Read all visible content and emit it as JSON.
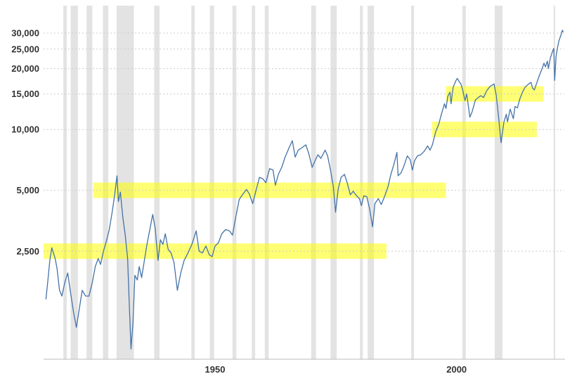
{
  "chart_data": {
    "type": "line",
    "title": "",
    "x_axis": {
      "range": [
        1914.5,
        2022.3
      ],
      "ticks": [
        {
          "value": 1950,
          "label": "1950"
        },
        {
          "value": 2000,
          "label": "2000"
        }
      ]
    },
    "y_axis": {
      "scale": "log",
      "range": [
        730,
        41000
      ],
      "ticks": [
        {
          "value": 2500,
          "label": "2,500"
        },
        {
          "value": 5000,
          "label": "5,000"
        },
        {
          "value": 10000,
          "label": "10,000"
        },
        {
          "value": 15000,
          "label": "15,000"
        },
        {
          "value": 20000,
          "label": "20,000"
        },
        {
          "value": 25000,
          "label": "25,000"
        },
        {
          "value": 30000,
          "label": "30,000"
        }
      ]
    },
    "grid": {
      "style": "dashed",
      "color": "#cccccc"
    },
    "axis_line_color": "#bbbbbb",
    "label_color": "#333333",
    "recession_bands": {
      "color": "#d9d9d9",
      "opacity": 0.75,
      "periods": [
        [
          1918.6,
          1919.3
        ],
        [
          1920.1,
          1921.6
        ],
        [
          1923.4,
          1924.6
        ],
        [
          1926.8,
          1927.9
        ],
        [
          1929.6,
          1933.2
        ],
        [
          1937.4,
          1938.5
        ],
        [
          1945.1,
          1945.8
        ],
        [
          1948.9,
          1949.8
        ],
        [
          1953.6,
          1954.4
        ],
        [
          1957.6,
          1958.3
        ],
        [
          1960.3,
          1961.1
        ],
        [
          1969.9,
          1970.9
        ],
        [
          1973.9,
          1975.2
        ],
        [
          1980.0,
          1980.6
        ],
        [
          1981.6,
          1982.9
        ],
        [
          1990.6,
          1991.2
        ],
        [
          2001.2,
          2001.9
        ],
        [
          2007.9,
          2009.5
        ],
        [
          2020.1,
          2020.4
        ]
      ]
    },
    "highlight_bands": {
      "color": "#ffff00",
      "opacity": 0.55,
      "bands": [
        {
          "level": 2500,
          "from": 1914.5,
          "to": 1985.5
        },
        {
          "level": 5000,
          "from": 1924.8,
          "to": 1997.8
        },
        {
          "level": 10000,
          "from": 1994.9,
          "to": 2016.6
        },
        {
          "level": 15000,
          "from": 1997.8,
          "to": 2018.0
        }
      ]
    },
    "series": [
      {
        "name": "price-line",
        "color": "#4572a7",
        "points": [
          [
            1915.0,
            1450
          ],
          [
            1915.4,
            1800
          ],
          [
            1915.8,
            2250
          ],
          [
            1916.2,
            2600
          ],
          [
            1916.9,
            2300
          ],
          [
            1917.3,
            2050
          ],
          [
            1917.8,
            1600
          ],
          [
            1918.3,
            1500
          ],
          [
            1918.9,
            1750
          ],
          [
            1919.5,
            1950
          ],
          [
            1920.1,
            1550
          ],
          [
            1920.7,
            1250
          ],
          [
            1921.3,
            1050
          ],
          [
            1921.9,
            1300
          ],
          [
            1922.5,
            1600
          ],
          [
            1923.2,
            1500
          ],
          [
            1923.9,
            1500
          ],
          [
            1924.6,
            1750
          ],
          [
            1925.2,
            2100
          ],
          [
            1925.8,
            2300
          ],
          [
            1926.3,
            2150
          ],
          [
            1926.9,
            2500
          ],
          [
            1927.5,
            2800
          ],
          [
            1928.1,
            3200
          ],
          [
            1928.7,
            3900
          ],
          [
            1929.2,
            4700
          ],
          [
            1929.7,
            5900
          ],
          [
            1930.0,
            4400
          ],
          [
            1930.4,
            4900
          ],
          [
            1930.9,
            3700
          ],
          [
            1931.4,
            3000
          ],
          [
            1931.9,
            2300
          ],
          [
            1932.3,
            1250
          ],
          [
            1932.6,
            820
          ],
          [
            1933.0,
            1100
          ],
          [
            1933.4,
            1900
          ],
          [
            1933.9,
            1800
          ],
          [
            1934.3,
            2100
          ],
          [
            1934.8,
            1850
          ],
          [
            1935.3,
            2200
          ],
          [
            1935.9,
            2700
          ],
          [
            1936.5,
            3200
          ],
          [
            1937.1,
            3800
          ],
          [
            1937.6,
            3250
          ],
          [
            1938.2,
            2250
          ],
          [
            1938.7,
            2850
          ],
          [
            1939.2,
            2700
          ],
          [
            1939.7,
            3050
          ],
          [
            1940.3,
            2550
          ],
          [
            1940.9,
            2450
          ],
          [
            1941.5,
            2200
          ],
          [
            1942.2,
            1600
          ],
          [
            1942.9,
            1950
          ],
          [
            1943.6,
            2250
          ],
          [
            1944.4,
            2450
          ],
          [
            1945.2,
            2700
          ],
          [
            1946.1,
            3150
          ],
          [
            1946.7,
            2500
          ],
          [
            1947.4,
            2450
          ],
          [
            1948.1,
            2650
          ],
          [
            1948.8,
            2400
          ],
          [
            1949.4,
            2350
          ],
          [
            1950.0,
            2650
          ],
          [
            1950.7,
            2750
          ],
          [
            1951.4,
            3050
          ],
          [
            1952.2,
            3200
          ],
          [
            1953.0,
            3150
          ],
          [
            1953.6,
            3000
          ],
          [
            1954.3,
            3700
          ],
          [
            1955.0,
            4500
          ],
          [
            1955.8,
            4800
          ],
          [
            1956.5,
            5050
          ],
          [
            1957.1,
            4800
          ],
          [
            1957.8,
            4300
          ],
          [
            1958.5,
            5000
          ],
          [
            1959.2,
            5800
          ],
          [
            1959.9,
            5700
          ],
          [
            1960.5,
            5450
          ],
          [
            1961.3,
            6400
          ],
          [
            1962.0,
            6300
          ],
          [
            1962.5,
            5300
          ],
          [
            1963.1,
            6000
          ],
          [
            1963.8,
            6500
          ],
          [
            1964.5,
            7300
          ],
          [
            1965.3,
            8100
          ],
          [
            1966.0,
            8800
          ],
          [
            1966.6,
            7300
          ],
          [
            1967.2,
            7900
          ],
          [
            1967.9,
            8100
          ],
          [
            1968.8,
            8400
          ],
          [
            1969.4,
            7600
          ],
          [
            1970.1,
            6500
          ],
          [
            1970.7,
            7000
          ],
          [
            1971.3,
            7500
          ],
          [
            1971.9,
            7200
          ],
          [
            1972.8,
            7900
          ],
          [
            1973.3,
            7400
          ],
          [
            1973.9,
            6300
          ],
          [
            1974.5,
            5200
          ],
          [
            1974.95,
            3900
          ],
          [
            1975.5,
            5100
          ],
          [
            1976.1,
            5800
          ],
          [
            1976.8,
            6000
          ],
          [
            1977.4,
            5400
          ],
          [
            1978.0,
            4750
          ],
          [
            1978.6,
            4950
          ],
          [
            1979.3,
            4700
          ],
          [
            1979.9,
            4550
          ],
          [
            1980.3,
            4200
          ],
          [
            1980.8,
            4700
          ],
          [
            1981.4,
            4650
          ],
          [
            1982.0,
            4050
          ],
          [
            1982.6,
            3300
          ],
          [
            1983.1,
            4300
          ],
          [
            1983.8,
            4550
          ],
          [
            1984.4,
            4250
          ],
          [
            1985.0,
            4600
          ],
          [
            1985.8,
            5200
          ],
          [
            1986.4,
            6000
          ],
          [
            1987.0,
            6700
          ],
          [
            1987.65,
            7700
          ],
          [
            1987.9,
            5900
          ],
          [
            1988.5,
            6100
          ],
          [
            1989.1,
            6600
          ],
          [
            1989.8,
            7400
          ],
          [
            1990.4,
            7100
          ],
          [
            1990.85,
            6300
          ],
          [
            1991.3,
            7000
          ],
          [
            1991.9,
            7400
          ],
          [
            1992.6,
            7500
          ],
          [
            1993.3,
            7800
          ],
          [
            1994.0,
            8300
          ],
          [
            1994.5,
            7900
          ],
          [
            1995.0,
            8400
          ],
          [
            1995.7,
            9800
          ],
          [
            1996.3,
            10600
          ],
          [
            1996.9,
            12000
          ],
          [
            1997.5,
            13400
          ],
          [
            1997.8,
            12700
          ],
          [
            1998.2,
            14600
          ],
          [
            1998.65,
            15300
          ],
          [
            1998.85,
            13400
          ],
          [
            1999.3,
            16200
          ],
          [
            1999.9,
            17500
          ],
          [
            2000.15,
            17900
          ],
          [
            2000.5,
            17300
          ],
          [
            2000.9,
            16800
          ],
          [
            2001.3,
            15600
          ],
          [
            2001.75,
            13900
          ],
          [
            2002.1,
            15000
          ],
          [
            2002.75,
            11500
          ],
          [
            2003.2,
            12200
          ],
          [
            2003.9,
            14000
          ],
          [
            2004.5,
            14400
          ],
          [
            2005.0,
            14700
          ],
          [
            2005.6,
            14400
          ],
          [
            2006.2,
            15500
          ],
          [
            2006.9,
            16300
          ],
          [
            2007.75,
            16800
          ],
          [
            2008.2,
            14800
          ],
          [
            2008.7,
            11500
          ],
          [
            2009.2,
            8600
          ],
          [
            2009.8,
            10900
          ],
          [
            2010.3,
            11900
          ],
          [
            2010.55,
            10900
          ],
          [
            2011.1,
            12600
          ],
          [
            2011.75,
            11300
          ],
          [
            2012.1,
            13000
          ],
          [
            2012.6,
            12800
          ],
          [
            2013.1,
            14200
          ],
          [
            2013.7,
            15400
          ],
          [
            2014.2,
            16200
          ],
          [
            2014.8,
            16700
          ],
          [
            2015.4,
            17100
          ],
          [
            2015.75,
            16000
          ],
          [
            2016.1,
            15700
          ],
          [
            2016.6,
            17000
          ],
          [
            2017.1,
            18400
          ],
          [
            2017.8,
            20300
          ],
          [
            2018.1,
            21300
          ],
          [
            2018.4,
            20400
          ],
          [
            2018.8,
            21800
          ],
          [
            2019.0,
            20000
          ],
          [
            2019.4,
            22500
          ],
          [
            2019.9,
            24500
          ],
          [
            2020.12,
            25200
          ],
          [
            2020.3,
            17500
          ],
          [
            2020.6,
            23000
          ],
          [
            2020.9,
            25500
          ],
          [
            2021.2,
            27500
          ],
          [
            2021.6,
            29300
          ],
          [
            2021.9,
            31000
          ],
          [
            2022.05,
            30400
          ]
        ]
      }
    ]
  }
}
